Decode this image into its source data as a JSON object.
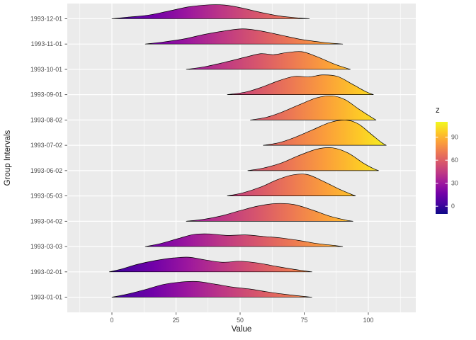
{
  "chart_data": {
    "type": "ridgeline",
    "title": "",
    "xlabel": "Value",
    "ylabel": "Group Intervals",
    "legend_title": "z",
    "x_ticks": [
      0,
      25,
      50,
      75,
      100
    ],
    "x_minor_ticks": [
      -12.5,
      12.5,
      37.5,
      62.5,
      87.5,
      112.5
    ],
    "x_domain": [
      -17.4,
      118.5
    ],
    "fill_domain": [
      -10,
      110
    ],
    "legend_ticks": [
      90,
      60,
      30,
      0
    ],
    "panel_bg": "#EBEBEB",
    "grid_color": "#FFFFFF",
    "tick_text_color": "#4D4D4D",
    "ridge_stroke": "#000000",
    "categories": [
      "1993-12-01",
      "1993-11-01",
      "1993-10-01",
      "1993-09-01",
      "1993-08-02",
      "1993-07-02",
      "1993-06-02",
      "1993-05-03",
      "1993-04-02",
      "1993-03-03",
      "1993-02-01",
      "1993-01-01"
    ],
    "palette": {
      "name": "plasma",
      "stops": [
        [
          "0",
          "#0d0887"
        ],
        [
          "0.11",
          "#46039f"
        ],
        [
          "0.22",
          "#7201a8"
        ],
        [
          "0.33",
          "#9c179e"
        ],
        [
          "0.44",
          "#bd3786"
        ],
        [
          "0.56",
          "#d8576b"
        ],
        [
          "0.67",
          "#ed7953"
        ],
        [
          "0.78",
          "#fb9f3a"
        ],
        [
          "0.89",
          "#fdca26"
        ],
        [
          "1",
          "#f0f921"
        ]
      ]
    },
    "series": [
      {
        "label": "1993-12-01",
        "points": [
          [
            0,
            0
          ],
          [
            6,
            0.06
          ],
          [
            14,
            0.14
          ],
          [
            22,
            0.3
          ],
          [
            30,
            0.47
          ],
          [
            38,
            0.55
          ],
          [
            44,
            0.54
          ],
          [
            50,
            0.44
          ],
          [
            58,
            0.25
          ],
          [
            66,
            0.1
          ],
          [
            73,
            0.03
          ],
          [
            77,
            0
          ]
        ]
      },
      {
        "label": "1993-11-01",
        "points": [
          [
            13,
            0
          ],
          [
            20,
            0.08
          ],
          [
            28,
            0.2
          ],
          [
            36,
            0.38
          ],
          [
            44,
            0.52
          ],
          [
            51,
            0.6
          ],
          [
            58,
            0.52
          ],
          [
            66,
            0.35
          ],
          [
            74,
            0.18
          ],
          [
            83,
            0.06
          ],
          [
            90,
            0
          ]
        ]
      },
      {
        "label": "1993-10-01",
        "points": [
          [
            29,
            0
          ],
          [
            36,
            0.1
          ],
          [
            44,
            0.28
          ],
          [
            52,
            0.48
          ],
          [
            58,
            0.62
          ],
          [
            63,
            0.58
          ],
          [
            68,
            0.66
          ],
          [
            74,
            0.7
          ],
          [
            80,
            0.5
          ],
          [
            87,
            0.2
          ],
          [
            93,
            0
          ]
        ]
      },
      {
        "label": "1993-09-01",
        "points": [
          [
            45,
            0
          ],
          [
            52,
            0.1
          ],
          [
            58,
            0.28
          ],
          [
            65,
            0.55
          ],
          [
            71,
            0.72
          ],
          [
            77,
            0.7
          ],
          [
            82,
            0.78
          ],
          [
            88,
            0.72
          ],
          [
            94,
            0.4
          ],
          [
            99,
            0.12
          ],
          [
            102,
            0
          ]
        ]
      },
      {
        "label": "1993-08-02",
        "points": [
          [
            54,
            0
          ],
          [
            60,
            0.1
          ],
          [
            66,
            0.3
          ],
          [
            73,
            0.6
          ],
          [
            80,
            0.88
          ],
          [
            86,
            0.95
          ],
          [
            91,
            0.8
          ],
          [
            96,
            0.45
          ],
          [
            101,
            0.12
          ],
          [
            103,
            0
          ]
        ]
      },
      {
        "label": "1993-07-02",
        "points": [
          [
            59,
            0
          ],
          [
            65,
            0.1
          ],
          [
            71,
            0.3
          ],
          [
            78,
            0.6
          ],
          [
            85,
            0.9
          ],
          [
            91,
            1.0
          ],
          [
            96,
            0.85
          ],
          [
            101,
            0.45
          ],
          [
            105,
            0.12
          ],
          [
            107,
            0
          ]
        ]
      },
      {
        "label": "1993-06-02",
        "points": [
          [
            53,
            0
          ],
          [
            59,
            0.1
          ],
          [
            66,
            0.3
          ],
          [
            73,
            0.6
          ],
          [
            80,
            0.85
          ],
          [
            86,
            0.9
          ],
          [
            92,
            0.7
          ],
          [
            98,
            0.3
          ],
          [
            102,
            0.08
          ],
          [
            104,
            0
          ]
        ]
      },
      {
        "label": "1993-05-03",
        "points": [
          [
            45,
            0
          ],
          [
            51,
            0.12
          ],
          [
            58,
            0.35
          ],
          [
            64,
            0.62
          ],
          [
            70,
            0.82
          ],
          [
            76,
            0.85
          ],
          [
            82,
            0.6
          ],
          [
            88,
            0.3
          ],
          [
            93,
            0.08
          ],
          [
            95,
            0
          ]
        ]
      },
      {
        "label": "1993-04-02",
        "points": [
          [
            29,
            0
          ],
          [
            36,
            0.08
          ],
          [
            43,
            0.22
          ],
          [
            50,
            0.42
          ],
          [
            57,
            0.6
          ],
          [
            64,
            0.7
          ],
          [
            71,
            0.66
          ],
          [
            78,
            0.45
          ],
          [
            85,
            0.2
          ],
          [
            91,
            0.05
          ],
          [
            94,
            0
          ]
        ]
      },
      {
        "label": "1993-03-03",
        "points": [
          [
            13,
            0
          ],
          [
            19,
            0.12
          ],
          [
            26,
            0.32
          ],
          [
            32,
            0.48
          ],
          [
            38,
            0.5
          ],
          [
            45,
            0.44
          ],
          [
            52,
            0.46
          ],
          [
            59,
            0.4
          ],
          [
            66,
            0.34
          ],
          [
            73,
            0.24
          ],
          [
            80,
            0.12
          ],
          [
            87,
            0.04
          ],
          [
            90,
            0
          ]
        ]
      },
      {
        "label": "1993-02-01",
        "points": [
          [
            -1,
            0
          ],
          [
            4,
            0.12
          ],
          [
            10,
            0.3
          ],
          [
            17,
            0.45
          ],
          [
            24,
            0.55
          ],
          [
            30,
            0.58
          ],
          [
            36,
            0.48
          ],
          [
            43,
            0.38
          ],
          [
            50,
            0.42
          ],
          [
            57,
            0.35
          ],
          [
            64,
            0.22
          ],
          [
            71,
            0.1
          ],
          [
            78,
            0
          ]
        ]
      },
      {
        "label": "1993-01-01",
        "points": [
          [
            0,
            0
          ],
          [
            6,
            0.12
          ],
          [
            13,
            0.3
          ],
          [
            20,
            0.5
          ],
          [
            27,
            0.6
          ],
          [
            33,
            0.62
          ],
          [
            40,
            0.52
          ],
          [
            47,
            0.4
          ],
          [
            54,
            0.32
          ],
          [
            60,
            0.22
          ],
          [
            67,
            0.12
          ],
          [
            74,
            0.04
          ],
          [
            78,
            0
          ]
        ]
      }
    ]
  }
}
